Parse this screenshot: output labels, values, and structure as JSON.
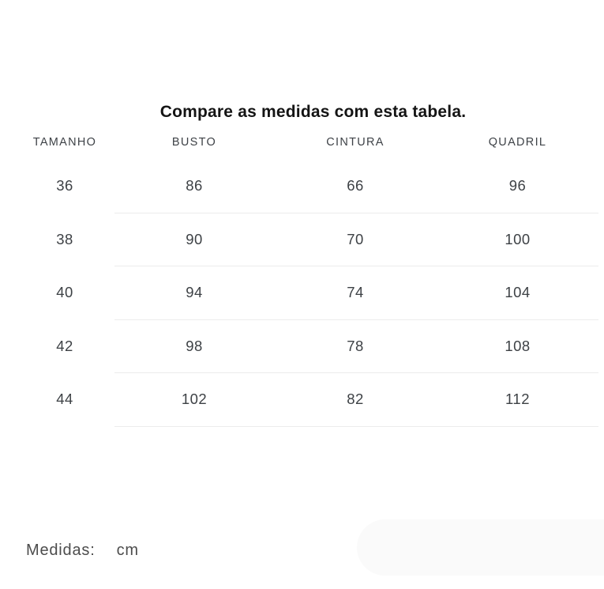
{
  "page": {
    "title": "Compare as medidas com esta tabela."
  },
  "size_table": {
    "headers": [
      "TAMANHO",
      "BUSTO",
      "CINTURA",
      "QUADRIL"
    ],
    "rows": [
      [
        "36",
        "86",
        "66",
        "96"
      ],
      [
        "38",
        "90",
        "70",
        "100"
      ],
      [
        "40",
        "94",
        "74",
        "104"
      ],
      [
        "42",
        "98",
        "78",
        "108"
      ],
      [
        "44",
        "102",
        "82",
        "112"
      ]
    ]
  },
  "footer": {
    "label": "Medidas:",
    "unit": "cm"
  },
  "colors": {
    "title_text": "#141414",
    "table_text": "#3e4247",
    "divider": "#ececec",
    "footer_text": "#4c4c4c",
    "background": "#ffffff",
    "decorative_shape": "#fafafa"
  }
}
